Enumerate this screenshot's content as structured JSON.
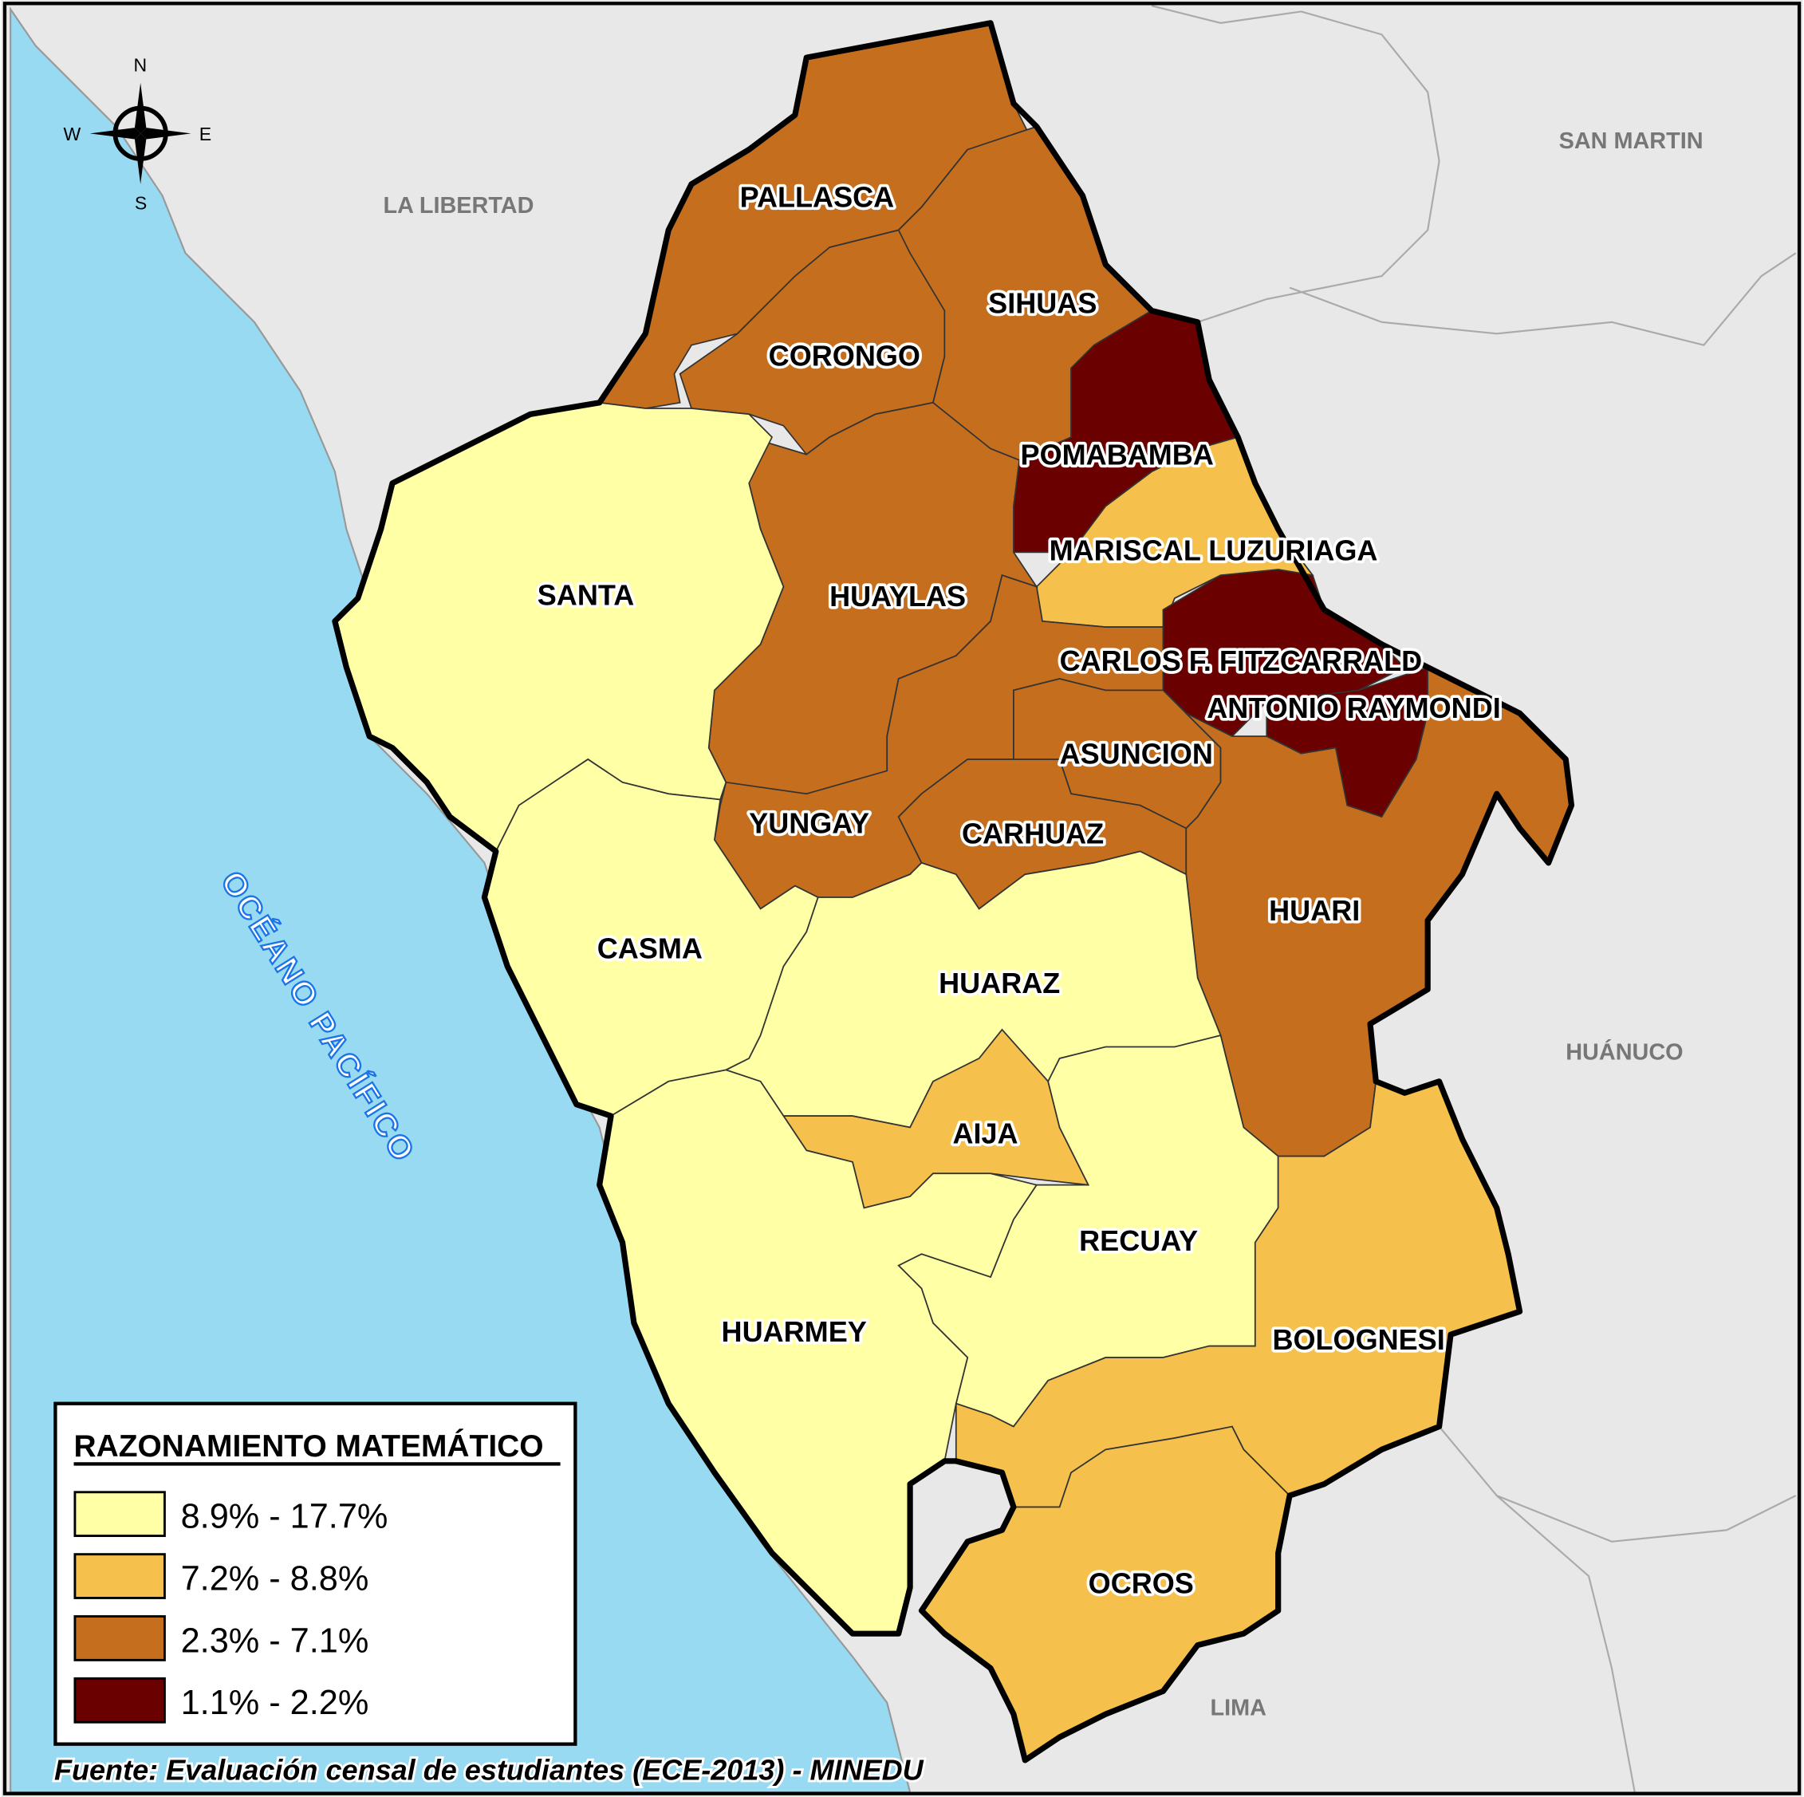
{
  "colors": {
    "class_1": "#FFFFA6",
    "class_2": "#F5C04C",
    "class_3": "#C46E1E",
    "class_4": "#6B0000",
    "sea": "#98DAF1",
    "neighbor_land": "#E8E8E8",
    "ocean_label": "#1A73E8"
  },
  "legend": {
    "title": "RAZONAMIENTO MATEMÁTICO",
    "classes": [
      {
        "label": "8.9% - 17.7%",
        "range": [
          8.9,
          17.7
        ],
        "color_key": "class_1"
      },
      {
        "label": "7.2% - 8.8%",
        "range": [
          7.2,
          8.8
        ],
        "color_key": "class_2"
      },
      {
        "label": "2.3% - 7.1%",
        "range": [
          2.3,
          7.1
        ],
        "color_key": "class_3"
      },
      {
        "label": "1.1% - 2.2%",
        "range": [
          1.1,
          2.2
        ],
        "color_key": "class_4"
      }
    ]
  },
  "provinces": [
    {
      "name": "PALLASCA",
      "class": 3
    },
    {
      "name": "CORONGO",
      "class": 3
    },
    {
      "name": "SIHUAS",
      "class": 3
    },
    {
      "name": "POMABAMBA",
      "class": 4
    },
    {
      "name": "MARISCAL LUZURIAGA",
      "class": 2
    },
    {
      "name": "CARLOS F. FITZCARRALD",
      "class": 4
    },
    {
      "name": "ANTONIO RAYMONDI",
      "class": 4
    },
    {
      "name": "HUAYLAS",
      "class": 3
    },
    {
      "name": "YUNGAY",
      "class": 3
    },
    {
      "name": "ASUNCION",
      "class": 3
    },
    {
      "name": "CARHUAZ",
      "class": 3
    },
    {
      "name": "HUARI",
      "class": 3
    },
    {
      "name": "SANTA",
      "class": 1
    },
    {
      "name": "CASMA",
      "class": 1
    },
    {
      "name": "HUARAZ",
      "class": 1
    },
    {
      "name": "AIJA",
      "class": 2
    },
    {
      "name": "RECUAY",
      "class": 1
    },
    {
      "name": "HUARMEY",
      "class": 1
    },
    {
      "name": "BOLOGNESI",
      "class": 2
    },
    {
      "name": "OCROS",
      "class": 2
    }
  ],
  "neighbors": [
    "LA LIBERTAD",
    "SAN MARTIN",
    "HUÁNUCO",
    "LIMA"
  ],
  "ocean": "OCÉANO PACÍFICO",
  "compass": {
    "n": "N",
    "s": "S",
    "e": "E",
    "w": "W"
  },
  "source": "Fuente: Evaluación censal de estudiantes (ECE-2013) - MINEDU"
}
